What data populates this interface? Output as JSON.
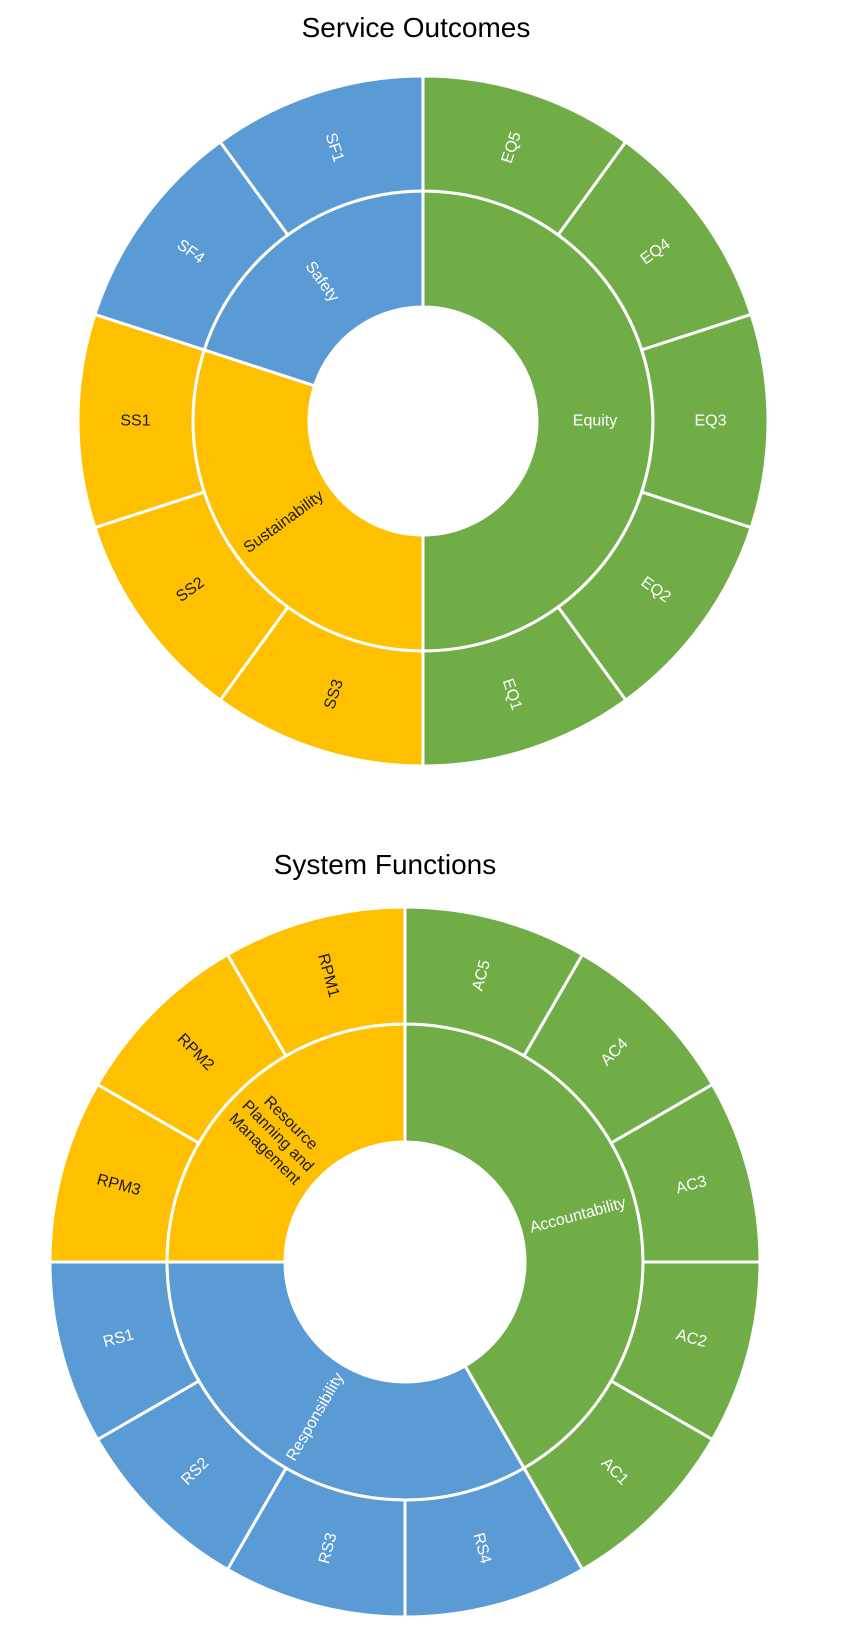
{
  "colors": {
    "blue": "#5b9bd5",
    "green": "#70ad47",
    "yellow": "#ffc000",
    "text_light": "#ffffff",
    "text_dark": "#1a1a1a"
  },
  "chart_data": [
    {
      "type": "sunburst",
      "title": "Service Outcomes",
      "groups": [
        {
          "name": "Equity",
          "color": "green",
          "label_color": "text_light",
          "children": [
            "EQ5",
            "EQ4",
            "EQ3",
            "EQ2",
            "EQ1"
          ]
        },
        {
          "name": "Sustainability",
          "color": "yellow",
          "label_color": "text_dark",
          "children": [
            "SS3",
            "SS2",
            "SS1"
          ]
        },
        {
          "name": "Safety",
          "color": "blue",
          "label_color": "text_light",
          "children": [
            "SF4",
            "SF1"
          ]
        }
      ],
      "leaf_value": 1
    },
    {
      "type": "sunburst",
      "title": "System Functions",
      "groups": [
        {
          "name": "Accountability",
          "color": "green",
          "label_color": "text_light",
          "children": [
            "AC5",
            "AC4",
            "AC3",
            "AC2",
            "AC1"
          ]
        },
        {
          "name": "Responsibility",
          "color": "blue",
          "label_color": "text_light",
          "children": [
            "RS4",
            "RS3",
            "RS2",
            "RS1"
          ]
        },
        {
          "name": "Resource Planning and Management",
          "color": "yellow",
          "label_color": "text_dark",
          "children": [
            "RPM3",
            "RPM2",
            "RPM1"
          ]
        }
      ],
      "leaf_value": 1
    }
  ]
}
